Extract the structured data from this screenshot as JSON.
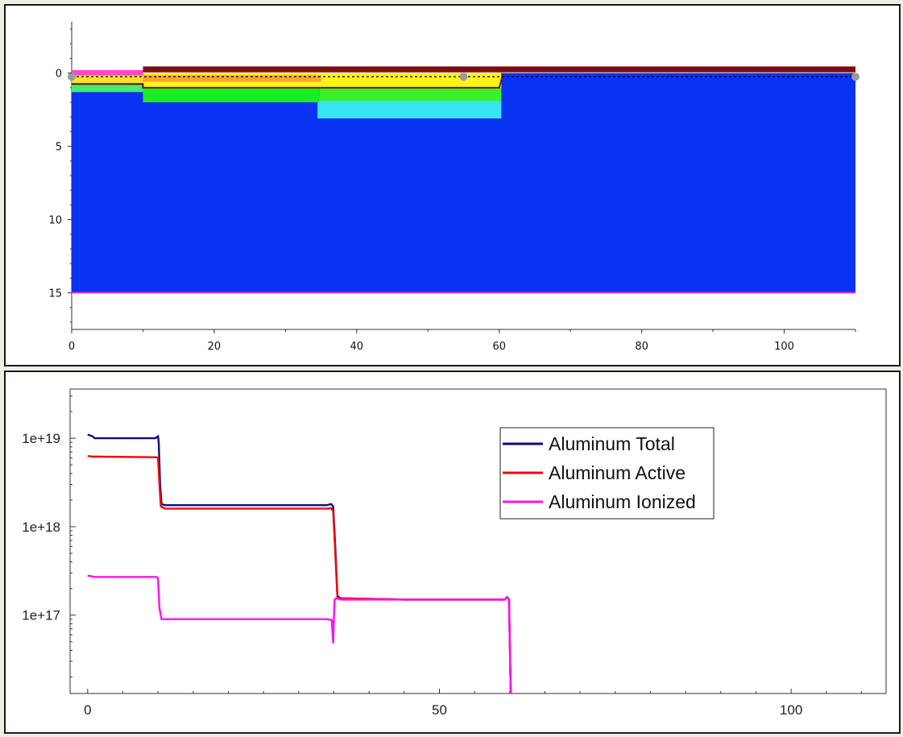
{
  "chart_data": [
    {
      "type": "heatmap",
      "title": "",
      "xlabel": "",
      "ylabel": "",
      "xlim": [
        0,
        110
      ],
      "ylim": [
        17.5,
        -3.5
      ],
      "x_ticks": [
        0,
        20,
        40,
        60,
        80,
        100
      ],
      "y_ticks": [
        0,
        5,
        10,
        15
      ],
      "grid": false,
      "regions": [
        {
          "name": "substrate",
          "x": [
            0,
            110
          ],
          "y": [
            0,
            15
          ],
          "color": "#0a32f2"
        },
        {
          "name": "cyan-layer",
          "x": [
            34.5,
            60.3
          ],
          "y": [
            1.7,
            3.1
          ],
          "color": "#37e4f0"
        },
        {
          "name": "green-layer-left",
          "x": [
            10,
            34.8
          ],
          "y": [
            1.0,
            2.0
          ],
          "color": "#19ec22"
        },
        {
          "name": "green-layer-right",
          "x": [
            34.8,
            60.3
          ],
          "y": [
            1.0,
            1.9
          ],
          "color": "#3cf02c"
        },
        {
          "name": "lightgreen-strip",
          "x": [
            0,
            10
          ],
          "y": [
            0.8,
            1.3
          ],
          "color": "#44ee6c"
        },
        {
          "name": "yellow-layer",
          "x": [
            10,
            60.3
          ],
          "y": [
            0,
            1.0
          ],
          "color": "#fff31c"
        },
        {
          "name": "orange-band",
          "x": [
            10,
            35
          ],
          "y": [
            0.15,
            0.6
          ],
          "color": "#ffa52a"
        },
        {
          "name": "yellow-left",
          "x": [
            0,
            10
          ],
          "y": [
            0.15,
            0.7
          ],
          "color": "#ffe12c"
        },
        {
          "name": "pink-left",
          "x": [
            0,
            10
          ],
          "y": [
            -0.2,
            0.15
          ],
          "color": "#ff45c8"
        },
        {
          "name": "oxide-top",
          "x": [
            10,
            110
          ],
          "y": [
            -0.45,
            -0.05
          ],
          "color": "#7b0f0f"
        },
        {
          "name": "bottom-boundary",
          "x": [
            0,
            110
          ],
          "y": [
            14.95,
            15.05
          ],
          "color": "#ff30e4"
        }
      ],
      "junction_line": {
        "color": "#6b1a0a",
        "points": [
          [
            0,
            0.75
          ],
          [
            10,
            0.75
          ],
          [
            10,
            1.0
          ],
          [
            60,
            1.0
          ],
          [
            60.4,
            0.3
          ],
          [
            60.4,
            0
          ]
        ]
      },
      "dotted_line": {
        "y": 0.25,
        "x": [
          0,
          110
        ],
        "color": "#000000"
      },
      "markers": [
        [
          0,
          0.25
        ],
        [
          55,
          0.25
        ],
        [
          110,
          0.25
        ]
      ],
      "marker_color": "#9a9a9a"
    },
    {
      "type": "line",
      "title": "",
      "xlabel": "",
      "ylabel": "",
      "xlim": [
        -2.5,
        113.5
      ],
      "ylim": [
        1.3e+16,
        3.6e+19
      ],
      "yscale": "log",
      "x_ticks": [
        0,
        50,
        100
      ],
      "y_ticks": [
        1e+17,
        1e+18,
        1e+19
      ],
      "y_tick_labels": [
        "1e+17",
        "1e+18",
        "1e+19"
      ],
      "grid": false,
      "legend": "top-right",
      "series": [
        {
          "name": "Aluminum Total",
          "color": "#0b0b80",
          "x": [
            0,
            0.7,
            1.0,
            9.6,
            10,
            10.1,
            10.3,
            10.5,
            11.0,
            20,
            30,
            34,
            34.6,
            34.9,
            35.2,
            35.5,
            36,
            45,
            55,
            59.3,
            59.6,
            59.9,
            60.1,
            60.15
          ],
          "y": [
            1.1e+19,
            1.05e+19,
            1e+19,
            1e+19,
            1.05e+19,
            9e+18,
            3e+18,
            1.8e+18,
            1.75e+18,
            1.75e+18,
            1.75e+18,
            1.75e+18,
            1.8e+18,
            1.7e+18,
            6e+17,
            1.65e+17,
            1.55e+17,
            1.5e+17,
            1.5e+17,
            1.5e+17,
            1.6e+17,
            1.5e+17,
            2e+16,
            1.3e+16
          ]
        },
        {
          "name": "Aluminum Active",
          "color": "#ee0a0a",
          "x": [
            0,
            0.7,
            9.8,
            10.0,
            10.2,
            10.4,
            10.7,
            11.0,
            20,
            30,
            34,
            34.6,
            34.9,
            35.2,
            35.5,
            36,
            45,
            55,
            59.3,
            59.6,
            59.9,
            60.1,
            60.15
          ],
          "y": [
            6.3e+18,
            6.2e+18,
            6.1e+18,
            6e+18,
            3e+18,
            1.7e+18,
            1.65e+18,
            1.6e+18,
            1.6e+18,
            1.6e+18,
            1.6e+18,
            1.62e+18,
            1.5e+18,
            5e+17,
            1.6e+17,
            1.55e+17,
            1.5e+17,
            1.5e+17,
            1.5e+17,
            1.6e+17,
            1.5e+17,
            2e+16,
            1.3e+16
          ]
        },
        {
          "name": "Aluminum Ionized",
          "color": "#ff10ee",
          "x": [
            0,
            0.5,
            1.0,
            9.8,
            10.0,
            10.2,
            10.5,
            11.0,
            20,
            30,
            34,
            34.7,
            34.9,
            35.0,
            35.1,
            35.3,
            36,
            45,
            55,
            59.3,
            59.6,
            59.9,
            60.1,
            60.15
          ],
          "y": [
            2.8e+17,
            2.75e+17,
            2.7e+17,
            2.7e+17,
            2.6e+17,
            1.2e+17,
            9e+16,
            9e+16,
            9e+16,
            9e+16,
            9e+16,
            8.8e+16,
            4.8e+16,
            9e+16,
            1.5e+17,
            1.55e+17,
            1.5e+17,
            1.5e+17,
            1.5e+17,
            1.5e+17,
            1.6e+17,
            1.5e+17,
            2e+16,
            1.3e+16
          ]
        }
      ]
    }
  ]
}
